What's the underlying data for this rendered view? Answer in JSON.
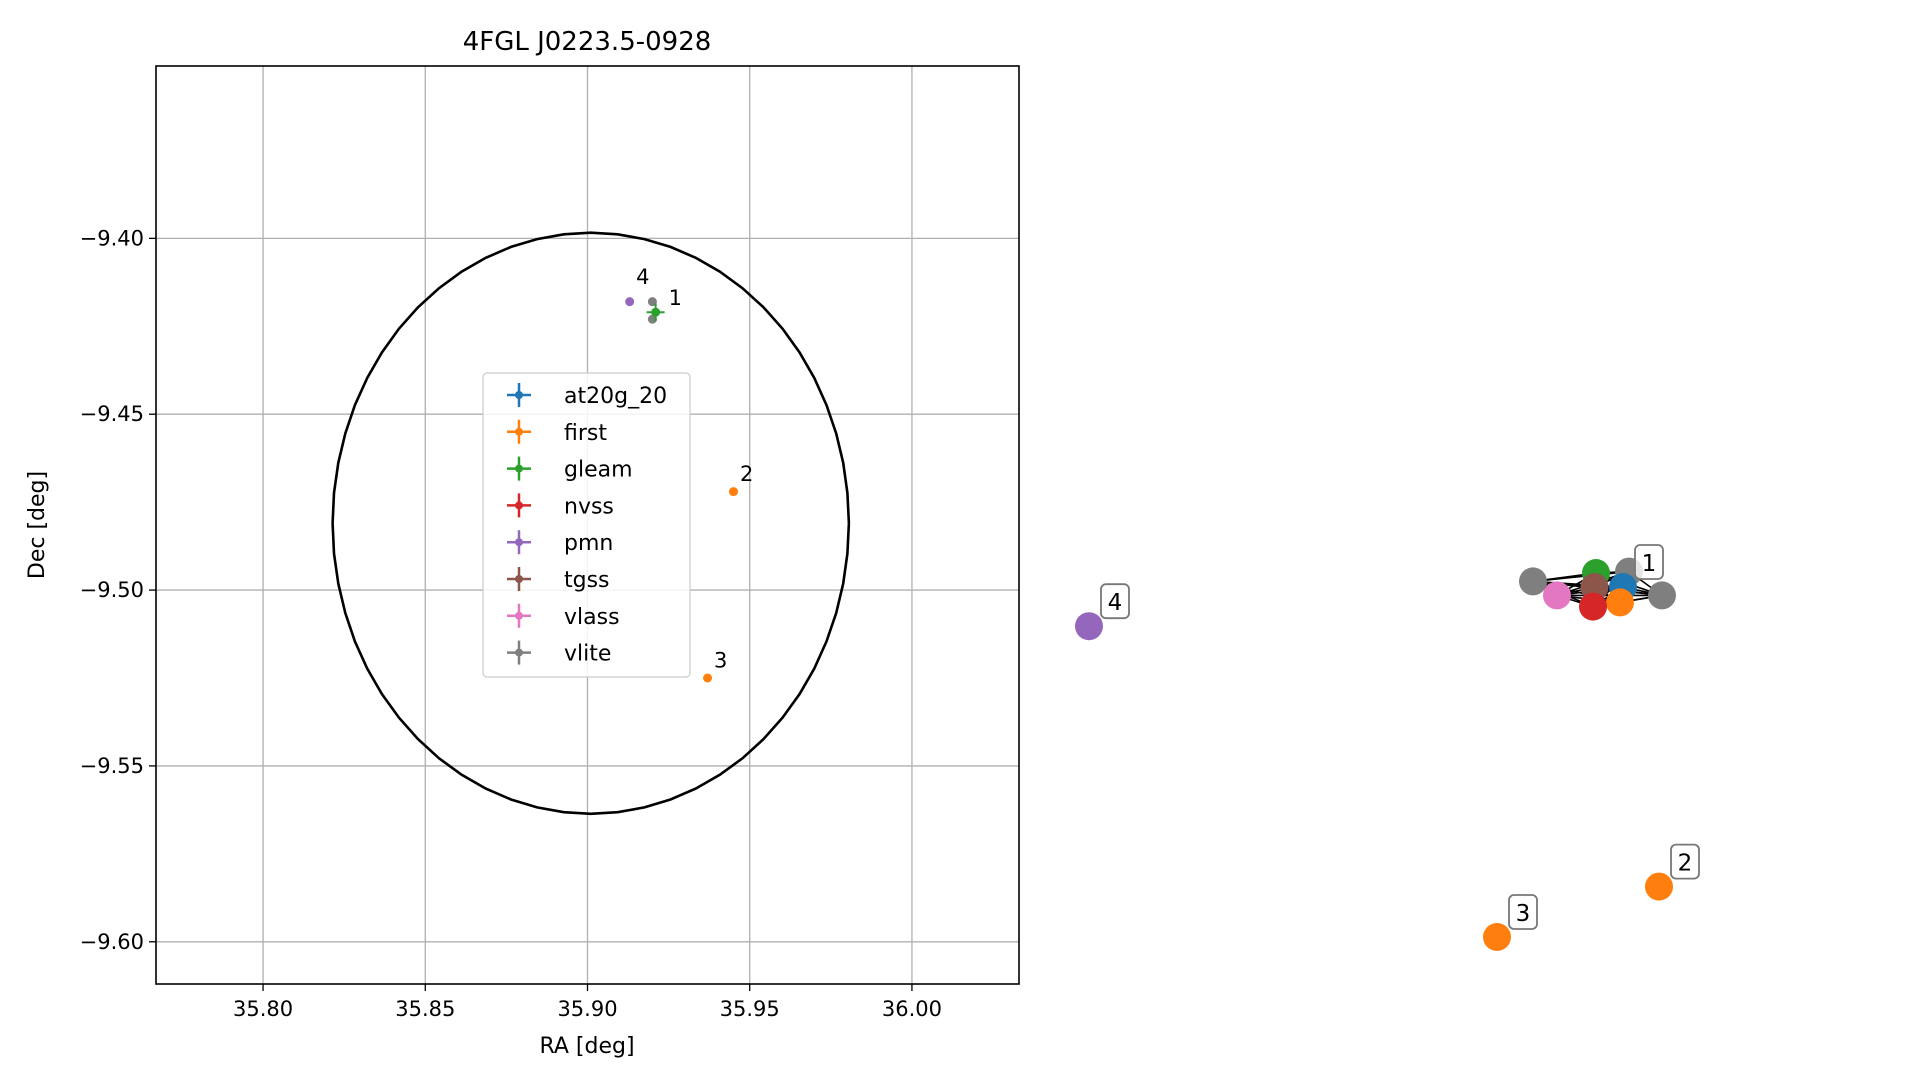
{
  "colors": {
    "at20g_20": "#1f77b4",
    "first": "#ff7f0e",
    "gleam": "#2ca02c",
    "nvss": "#d62728",
    "pmn": "#9467bd",
    "tgss": "#8c564b",
    "vlass": "#e377c2",
    "vlite": "#7f7f7f",
    "grid": "#b0b0b0",
    "edge": "#000000"
  },
  "chart_data": [
    {
      "type": "scatter",
      "title": "4FGL J0223.5-0928",
      "xlabel": "RA [deg]",
      "ylabel": "Dec [deg]",
      "xlim": [
        35.767,
        36.033
      ],
      "ylim": [
        -9.612,
        -9.351
      ],
      "xticks": [
        35.8,
        35.85,
        35.9,
        35.95,
        36.0
      ],
      "xtick_labels": [
        "35.80",
        "35.85",
        "35.90",
        "35.95",
        "36.00"
      ],
      "yticks": [
        -9.4,
        -9.45,
        -9.5,
        -9.55,
        -9.6
      ],
      "ytick_labels": [
        "−9.40",
        "−9.45",
        "−9.50",
        "−9.55",
        "−9.60"
      ],
      "grid": true,
      "circle": {
        "center": [
          35.901,
          -9.481
        ],
        "radius_dec": 0.0826
      },
      "legend": {
        "placement": "center-left",
        "entries": [
          "at20g_20",
          "first",
          "gleam",
          "nvss",
          "pmn",
          "tgss",
          "vlass",
          "vlite"
        ]
      },
      "points": [
        {
          "series": "first",
          "x": 35.945,
          "y": -9.472
        },
        {
          "series": "first",
          "x": 35.937,
          "y": -9.525
        },
        {
          "series": "pmn",
          "x": 35.913,
          "y": -9.418
        },
        {
          "series": "vlite",
          "x": 35.92,
          "y": -9.418
        },
        {
          "series": "vlite",
          "x": 35.92,
          "y": -9.423
        },
        {
          "series": "gleam",
          "x": 35.921,
          "y": -9.421
        }
      ],
      "annotations": [
        {
          "text": "4",
          "x": 35.915,
          "y": -9.413
        },
        {
          "text": "1",
          "x": 35.925,
          "y": -9.419
        },
        {
          "text": "2",
          "x": 35.947,
          "y": -9.469
        },
        {
          "text": "3",
          "x": 35.939,
          "y": -9.522
        }
      ]
    },
    {
      "type": "network",
      "nodes": [
        {
          "id": "gleam",
          "series": "gleam",
          "x": 0.33,
          "y": 0.84
        },
        {
          "id": "vlite-a",
          "series": "vlite",
          "x": 0.44,
          "y": 0.845
        },
        {
          "id": "vlite-b",
          "series": "vlite",
          "x": 0.12,
          "y": 0.81
        },
        {
          "id": "tgss",
          "series": "tgss",
          "x": 0.325,
          "y": 0.79
        },
        {
          "id": "at20g",
          "series": "at20g_20",
          "x": 0.42,
          "y": 0.79
        },
        {
          "id": "vlass",
          "series": "vlass",
          "x": 0.2,
          "y": 0.76
        },
        {
          "id": "first-a",
          "series": "first",
          "x": 0.41,
          "y": 0.735
        },
        {
          "id": "nvss",
          "series": "nvss",
          "x": 0.32,
          "y": 0.72
        },
        {
          "id": "vlite-c",
          "series": "vlite",
          "x": 0.55,
          "y": 0.76
        },
        {
          "id": "pmn",
          "series": "pmn",
          "x": -1.36,
          "y": 0.65
        },
        {
          "id": "first-2",
          "series": "first",
          "x": 0.54,
          "y": -0.28
        },
        {
          "id": "first-3",
          "series": "first",
          "x": 0.0,
          "y": -0.46
        }
      ],
      "edges": [
        [
          "gleam",
          "vlite-a"
        ],
        [
          "gleam",
          "vlite-b"
        ],
        [
          "gleam",
          "tgss"
        ],
        [
          "gleam",
          "at20g"
        ],
        [
          "gleam",
          "vlass"
        ],
        [
          "gleam",
          "first-a"
        ],
        [
          "gleam",
          "nvss"
        ],
        [
          "gleam",
          "vlite-c"
        ],
        [
          "vlite-a",
          "vlite-b"
        ],
        [
          "vlite-a",
          "tgss"
        ],
        [
          "vlite-a",
          "at20g"
        ],
        [
          "vlite-a",
          "vlass"
        ],
        [
          "vlite-a",
          "first-a"
        ],
        [
          "vlite-a",
          "nvss"
        ],
        [
          "vlite-a",
          "vlite-c"
        ],
        [
          "vlite-b",
          "tgss"
        ],
        [
          "vlite-b",
          "at20g"
        ],
        [
          "vlite-b",
          "vlass"
        ],
        [
          "vlite-b",
          "first-a"
        ],
        [
          "vlite-b",
          "nvss"
        ],
        [
          "vlite-b",
          "vlite-c"
        ],
        [
          "tgss",
          "at20g"
        ],
        [
          "tgss",
          "vlass"
        ],
        [
          "tgss",
          "first-a"
        ],
        [
          "tgss",
          "nvss"
        ],
        [
          "tgss",
          "vlite-c"
        ],
        [
          "at20g",
          "vlass"
        ],
        [
          "at20g",
          "first-a"
        ],
        [
          "at20g",
          "nvss"
        ],
        [
          "at20g",
          "vlite-c"
        ],
        [
          "vlass",
          "first-a"
        ],
        [
          "vlass",
          "nvss"
        ],
        [
          "vlass",
          "vlite-c"
        ],
        [
          "first-a",
          "nvss"
        ],
        [
          "first-a",
          "vlite-c"
        ],
        [
          "nvss",
          "vlite-c"
        ]
      ],
      "labels": [
        {
          "text": "1",
          "node": "at20g"
        },
        {
          "text": "4",
          "node": "pmn"
        },
        {
          "text": "2",
          "node": "first-2"
        },
        {
          "text": "3",
          "node": "first-3"
        }
      ]
    }
  ]
}
